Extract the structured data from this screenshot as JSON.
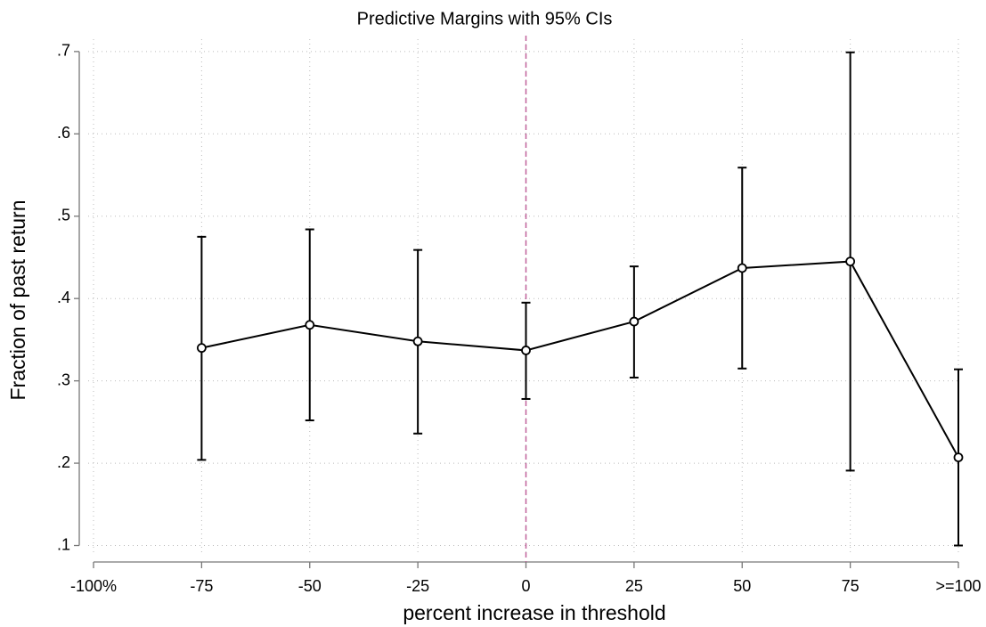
{
  "chart_data": {
    "type": "line",
    "title": "Predictive Margins with 95% CIs",
    "x_label": "percent increase in threshold",
    "y_label": "Fraction of past return",
    "x": [
      -75,
      -50,
      -25,
      0,
      25,
      50,
      75,
      100
    ],
    "values": [
      0.34,
      0.368,
      0.348,
      0.337,
      0.372,
      0.437,
      0.445,
      0.207
    ],
    "lower": [
      0.204,
      0.252,
      0.236,
      0.278,
      0.304,
      0.315,
      0.191,
      0.1
    ],
    "upper": [
      0.475,
      0.484,
      0.459,
      0.395,
      0.439,
      0.559,
      0.699,
      0.314
    ],
    "color": "#000000",
    "xlim": [
      -100,
      100
    ],
    "xticks": [
      {
        "value": -100,
        "label": "-100%"
      },
      -75,
      -50,
      -25,
      0,
      25,
      50,
      75,
      {
        "value": 100,
        "label": ">=100"
      }
    ],
    "ylim": [
      0.08,
      0.715
    ],
    "yticks": [
      {
        "value": 0.1,
        "label": ".1"
      },
      {
        "value": 0.2,
        "label": ".2"
      },
      {
        "value": 0.3,
        "label": ".3"
      },
      {
        "value": 0.4,
        "label": ".4"
      },
      {
        "value": 0.5,
        "label": ".5"
      },
      {
        "value": 0.6,
        "label": ".6"
      },
      {
        "value": 0.7,
        "label": ".7"
      }
    ],
    "grid": true,
    "xline": 0,
    "xline_color": "#c0609a"
  }
}
